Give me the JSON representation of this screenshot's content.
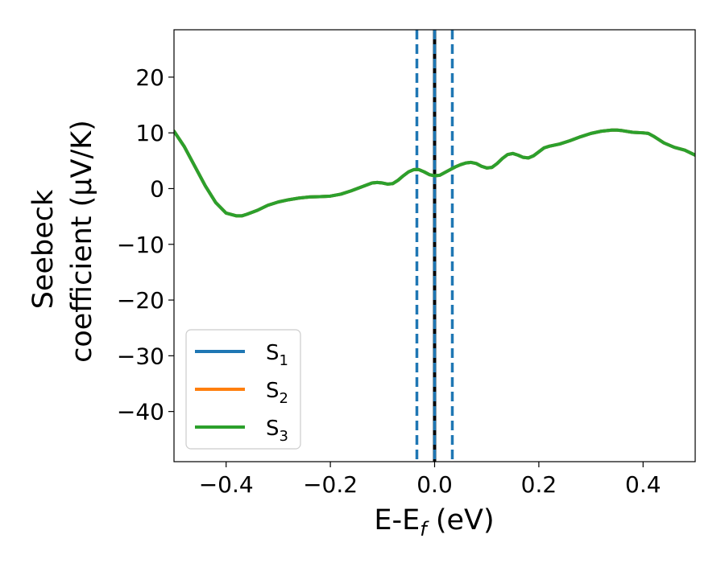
{
  "chart_data": {
    "type": "line",
    "xlabel": {
      "main": "E-E",
      "sub": "f",
      "suffix": " (eV)"
    },
    "ylabel": {
      "line1": "Seebeck",
      "line2": "coefficient  (μV/K)"
    },
    "xlim": [
      -0.5,
      0.5
    ],
    "ylim": [
      -49,
      28.5
    ],
    "xticks": [
      -0.4,
      -0.2,
      0.0,
      0.2,
      0.4
    ],
    "xtick_labels": [
      "−0.4",
      "−0.2",
      "0.0",
      "0.2",
      "0.4"
    ],
    "yticks": [
      20,
      10,
      0,
      -10,
      -20,
      -30,
      -40
    ],
    "ytick_labels": [
      "20",
      "10",
      "0",
      "−10",
      "−20",
      "−30",
      "−40"
    ],
    "grid": false,
    "legend_position": "lower-left",
    "legend": [
      {
        "base": "S",
        "sub": "1",
        "color": "#1f77b4"
      },
      {
        "base": "S",
        "sub": "2",
        "color": "#ff7f0e"
      },
      {
        "base": "S",
        "sub": "3",
        "color": "#2ca02c"
      }
    ],
    "x": [
      -0.5,
      -0.48,
      -0.46,
      -0.44,
      -0.42,
      -0.4,
      -0.38,
      -0.37,
      -0.36,
      -0.34,
      -0.32,
      -0.3,
      -0.28,
      -0.26,
      -0.24,
      -0.22,
      -0.2,
      -0.18,
      -0.16,
      -0.14,
      -0.12,
      -0.11,
      -0.1,
      -0.09,
      -0.08,
      -0.07,
      -0.06,
      -0.05,
      -0.04,
      -0.03,
      -0.02,
      -0.01,
      0.0,
      0.01,
      0.02,
      0.03,
      0.04,
      0.05,
      0.06,
      0.07,
      0.08,
      0.09,
      0.1,
      0.11,
      0.12,
      0.13,
      0.14,
      0.15,
      0.16,
      0.17,
      0.18,
      0.19,
      0.2,
      0.21,
      0.22,
      0.23,
      0.24,
      0.26,
      0.28,
      0.3,
      0.32,
      0.34,
      0.35,
      0.36,
      0.38,
      0.4,
      0.41,
      0.42,
      0.44,
      0.46,
      0.48,
      0.5
    ],
    "series": [
      {
        "name": "S1",
        "color": "#1f77b4",
        "values": [
          10.3,
          7.5,
          4.0,
          0.5,
          -2.5,
          -4.4,
          -4.9,
          -4.9,
          -4.6,
          -3.9,
          -3.0,
          -2.4,
          -2.0,
          -1.7,
          -1.5,
          -1.45,
          -1.35,
          -1.0,
          -0.4,
          0.3,
          1.0,
          1.1,
          1.0,
          0.8,
          0.9,
          1.5,
          2.3,
          3.0,
          3.4,
          3.4,
          3.0,
          2.5,
          2.3,
          2.4,
          2.9,
          3.4,
          3.9,
          4.3,
          4.6,
          4.7,
          4.5,
          4.0,
          3.7,
          3.8,
          4.5,
          5.4,
          6.1,
          6.3,
          6.0,
          5.6,
          5.5,
          5.9,
          6.6,
          7.3,
          7.6,
          7.8,
          8.0,
          8.6,
          9.3,
          9.9,
          10.3,
          10.5,
          10.5,
          10.4,
          10.1,
          10.0,
          9.9,
          9.4,
          8.2,
          7.4,
          6.9,
          6.0
        ]
      },
      {
        "name": "S2",
        "color": "#ff7f0e",
        "values": [
          10.3,
          7.5,
          4.0,
          0.5,
          -2.5,
          -4.4,
          -4.9,
          -4.9,
          -4.6,
          -3.9,
          -3.0,
          -2.4,
          -2.0,
          -1.7,
          -1.5,
          -1.45,
          -1.35,
          -1.0,
          -0.4,
          0.3,
          1.0,
          1.1,
          1.0,
          0.8,
          0.9,
          1.5,
          2.3,
          3.0,
          3.4,
          3.4,
          3.0,
          2.5,
          2.3,
          2.4,
          2.9,
          3.4,
          3.9,
          4.3,
          4.6,
          4.7,
          4.5,
          4.0,
          3.7,
          3.8,
          4.5,
          5.4,
          6.1,
          6.3,
          6.0,
          5.6,
          5.5,
          5.9,
          6.6,
          7.3,
          7.6,
          7.8,
          8.0,
          8.6,
          9.3,
          9.9,
          10.3,
          10.5,
          10.5,
          10.4,
          10.1,
          10.0,
          9.9,
          9.4,
          8.2,
          7.4,
          6.9,
          6.0
        ]
      },
      {
        "name": "S3",
        "color": "#2ca02c",
        "values": [
          10.3,
          7.5,
          4.0,
          0.5,
          -2.5,
          -4.4,
          -4.9,
          -4.9,
          -4.6,
          -3.9,
          -3.0,
          -2.4,
          -2.0,
          -1.7,
          -1.5,
          -1.45,
          -1.35,
          -1.0,
          -0.4,
          0.3,
          1.0,
          1.1,
          1.0,
          0.8,
          0.9,
          1.5,
          2.3,
          3.0,
          3.4,
          3.4,
          3.0,
          2.5,
          2.3,
          2.4,
          2.9,
          3.4,
          3.9,
          4.3,
          4.6,
          4.7,
          4.5,
          4.0,
          3.7,
          3.8,
          4.5,
          5.4,
          6.1,
          6.3,
          6.0,
          5.6,
          5.5,
          5.9,
          6.6,
          7.3,
          7.6,
          7.8,
          8.0,
          8.6,
          9.3,
          9.9,
          10.3,
          10.5,
          10.5,
          10.4,
          10.1,
          10.0,
          9.9,
          9.4,
          8.2,
          7.4,
          6.9,
          6.0
        ]
      }
    ],
    "vertical_lines": [
      {
        "x": -0.034,
        "style": "dashed",
        "color": "#1f77b4"
      },
      {
        "x": 0.0,
        "style": "solid",
        "color": "#000000"
      },
      {
        "x": 0.0,
        "style": "dashed",
        "color": "#1f77b4"
      },
      {
        "x": 0.034,
        "style": "dashed",
        "color": "#1f77b4"
      }
    ]
  }
}
